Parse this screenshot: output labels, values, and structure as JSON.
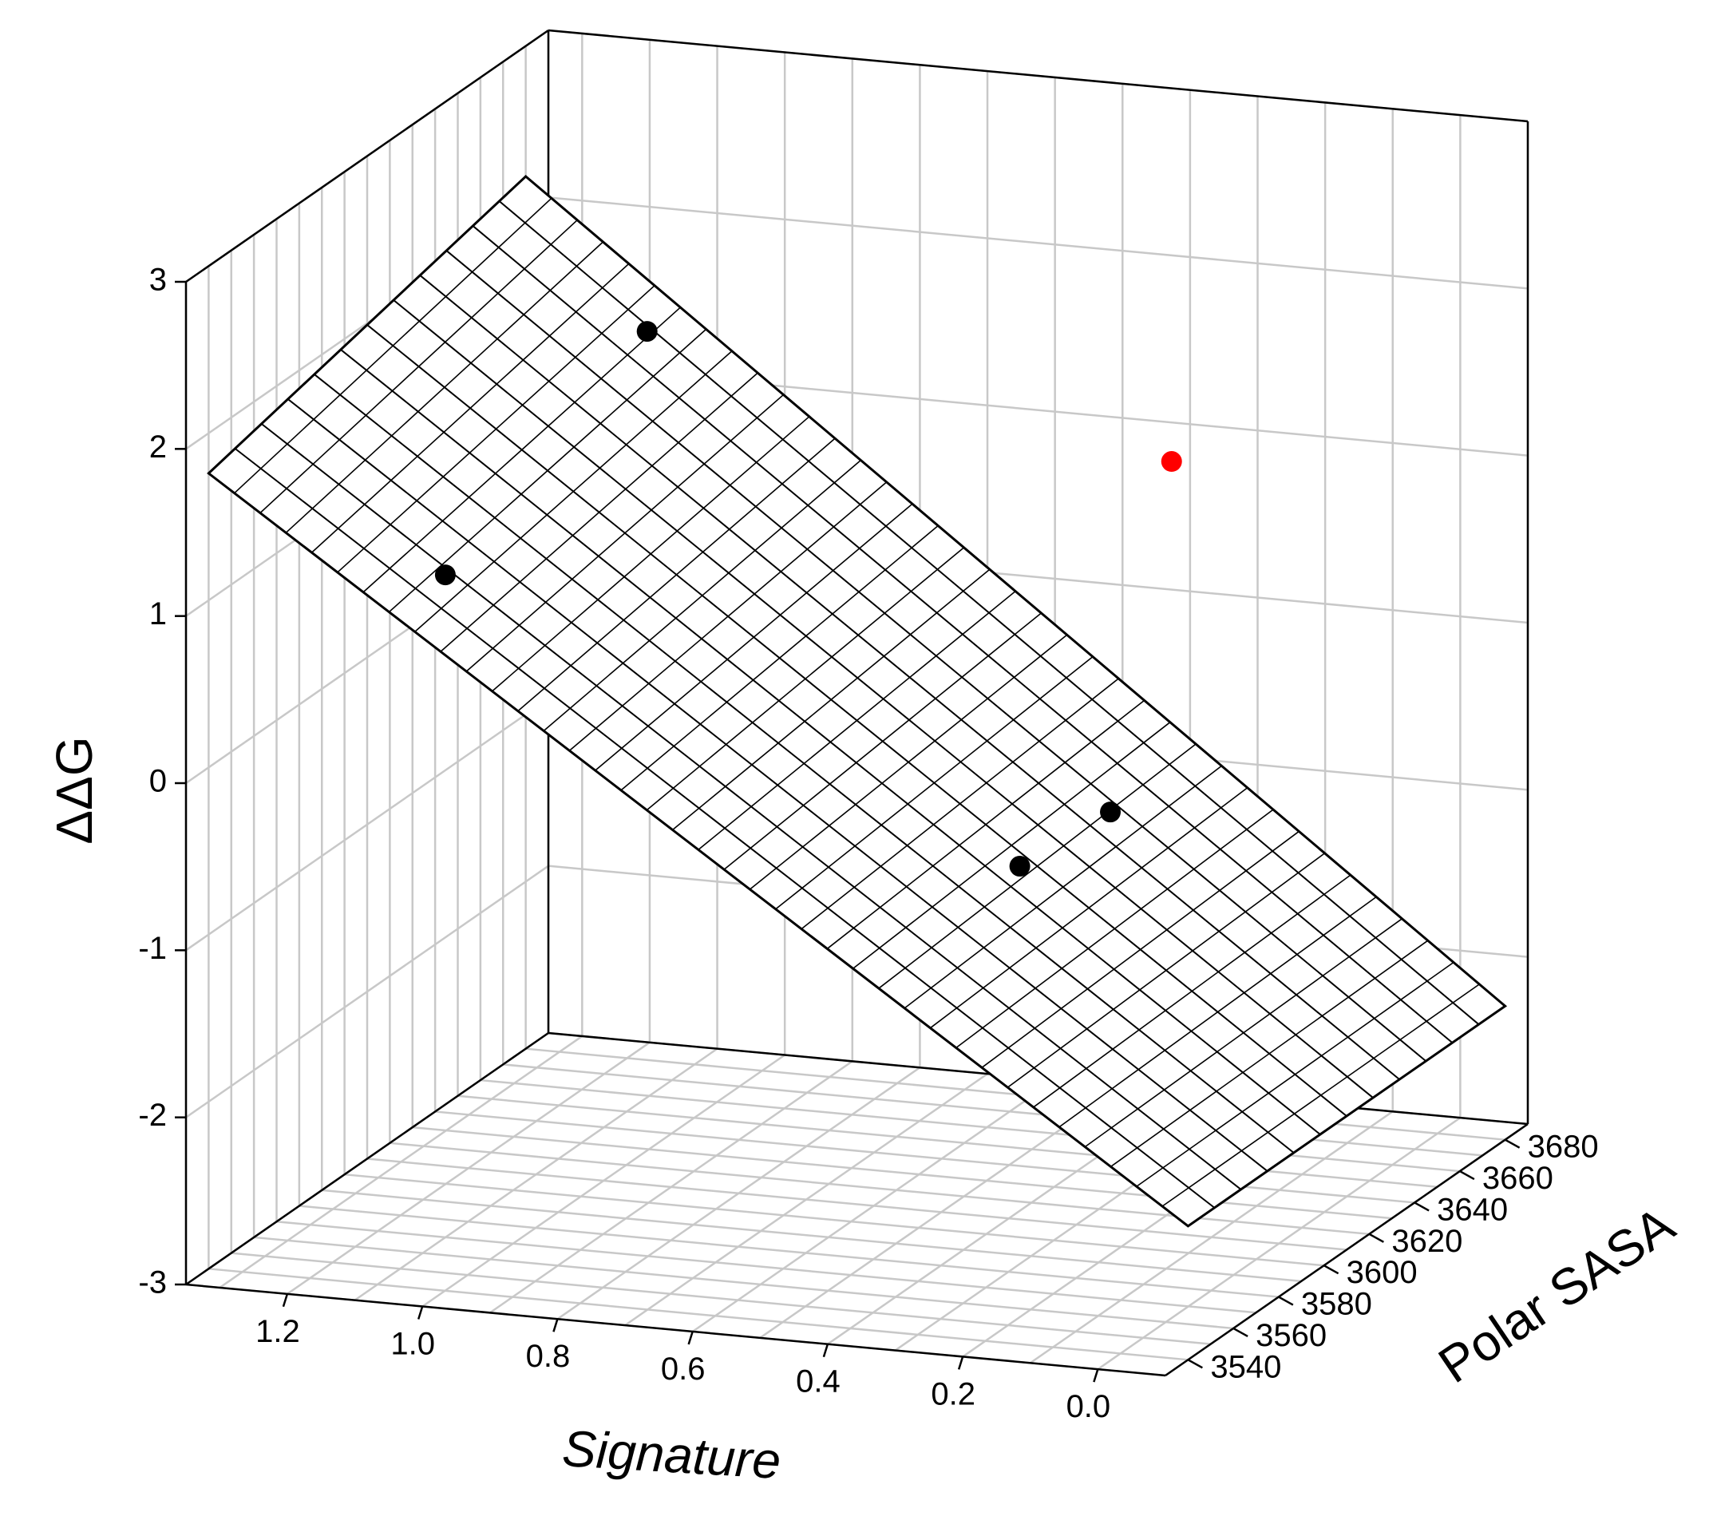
{
  "chart_data": {
    "type": "scatter",
    "variant": "3d-scatter-with-regression-plane",
    "title": "",
    "axes": {
      "x": {
        "label": "Signature",
        "range": [
          -0.1,
          1.35
        ],
        "ticks": [
          1.2,
          1.0,
          0.8,
          0.6,
          0.4,
          0.2,
          0.0
        ],
        "tick_labels": [
          "1.2",
          "1.0",
          "0.8",
          "0.6",
          "0.4",
          "0.2",
          "0.0"
        ]
      },
      "y": {
        "label": "Polar SASA",
        "range": [
          3530,
          3690
        ],
        "ticks": [
          3540,
          3560,
          3580,
          3600,
          3620,
          3640,
          3660,
          3680
        ],
        "tick_labels": [
          "3540",
          "3560",
          "3580",
          "3600",
          "3620",
          "3640",
          "3660",
          "3680"
        ]
      },
      "z": {
        "label": "ΔΔG",
        "range": [
          -3,
          3
        ],
        "ticks": [
          -3,
          -2,
          -1,
          0,
          1,
          2,
          3
        ],
        "tick_labels": [
          "-3",
          "-2",
          "-1",
          "0",
          "1",
          "2",
          "3"
        ]
      }
    },
    "grid": true,
    "points": [
      {
        "signature": 1.07,
        "polar_sasa": 3561,
        "ddg": 1.06,
        "color": "#000000"
      },
      {
        "signature": 1.12,
        "polar_sasa": 3665,
        "ddg": 1.52,
        "color": "#000000"
      },
      {
        "signature": 0.31,
        "polar_sasa": 3655,
        "ddg": 1.14,
        "color": "#ff0000"
      },
      {
        "signature": 0.3,
        "polar_sasa": 3585,
        "ddg": -0.62,
        "color": "#000000"
      },
      {
        "signature": 0.29,
        "polar_sasa": 3622,
        "ddg": -0.64,
        "color": "#000000"
      }
    ],
    "plane": {
      "corners": [
        {
          "signature": 1.35,
          "polar_sasa": 3540,
          "ddg": 1.76
        },
        {
          "signature": 1.35,
          "polar_sasa": 3680,
          "ddg": 2.22
        },
        {
          "signature": -0.1,
          "polar_sasa": 3680,
          "ddg": -2.2
        },
        {
          "signature": -0.1,
          "polar_sasa": 3540,
          "ddg": -2.2
        }
      ],
      "mesh_lines_along_signature": 12,
      "mesh_lines_along_sasa": 38
    }
  }
}
